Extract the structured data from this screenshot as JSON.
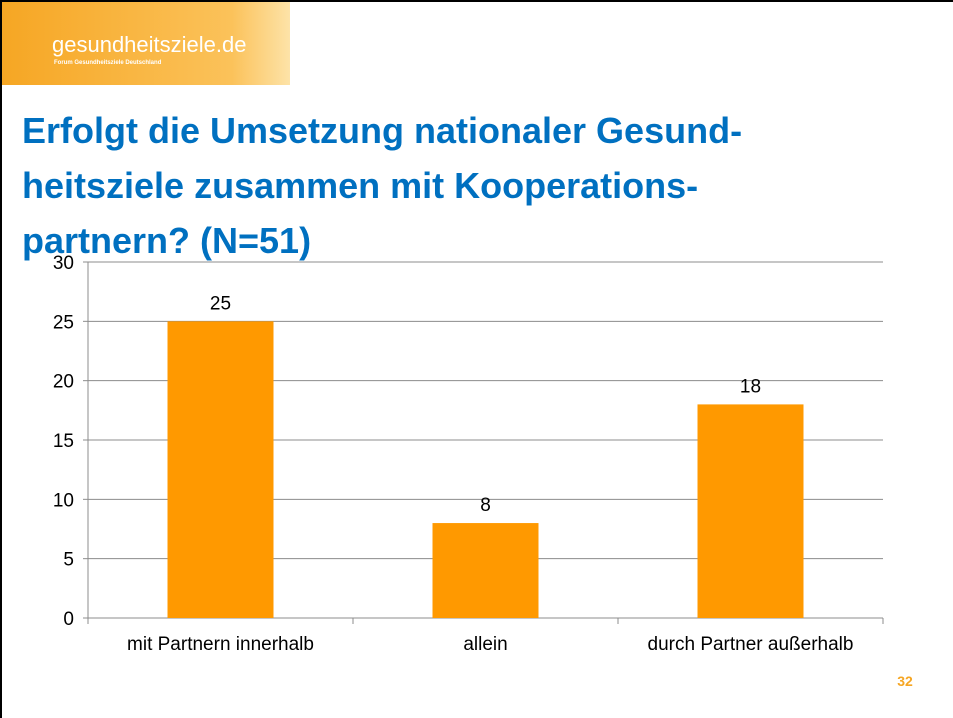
{
  "header": {
    "logo": "gesundheitsziele.de",
    "logo_subtitle": "Forum Gesundheitsziele Deutschland"
  },
  "page_number": "32",
  "chart_data": {
    "type": "bar",
    "title": [
      "Erfolgt die Umsetzung nationaler Gesund-",
      "heitsziele zusammen mit Kooperations-",
      "partnern? (N=51)"
    ],
    "categories": [
      "mit Partnern innerhalb",
      "allein",
      "durch Partner außerhalb"
    ],
    "values": [
      25,
      8,
      18
    ],
    "color": "#ff9900",
    "ylim": [
      0,
      30
    ],
    "yticks": [
      0,
      5,
      10,
      15,
      20,
      25,
      30
    ],
    "grid": true
  }
}
